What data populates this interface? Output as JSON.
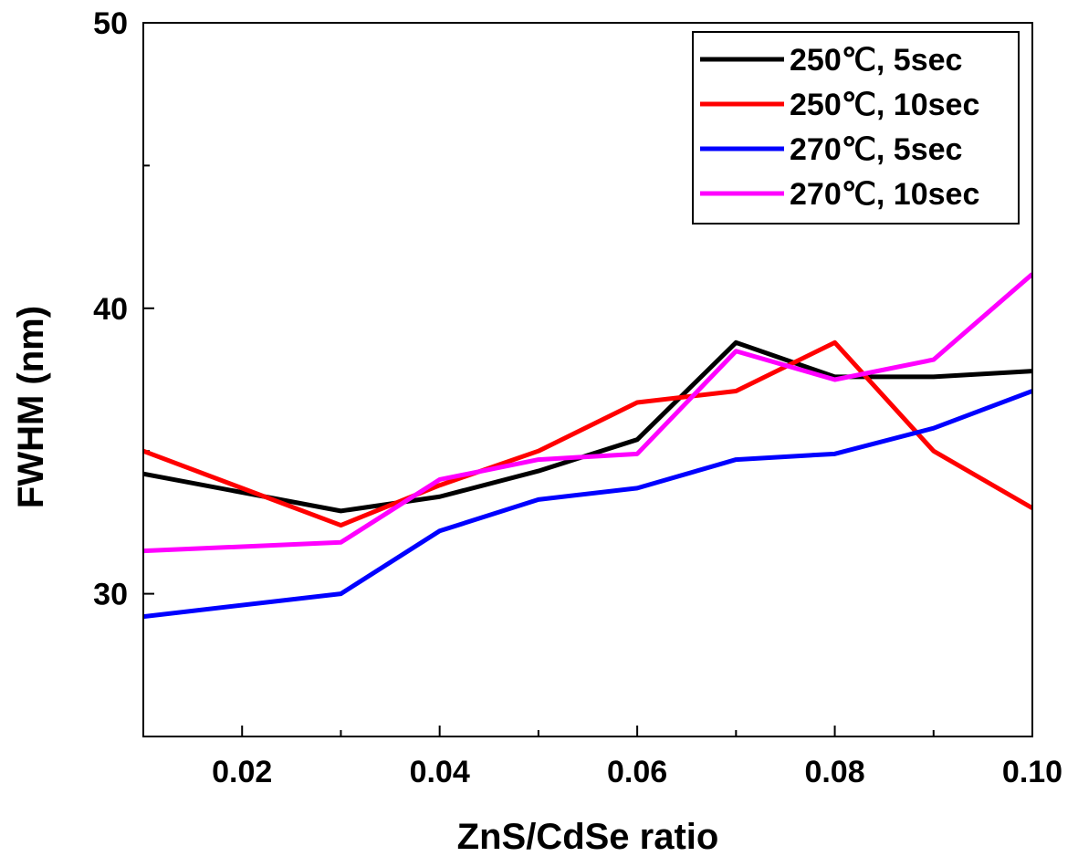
{
  "chart_data": {
    "type": "line",
    "xlabel": "ZnS/CdSe ratio",
    "ylabel": "FWHM (nm)",
    "xlim": [
      0.01,
      0.1
    ],
    "ylim": [
      25,
      50
    ],
    "x_ticks": [
      "0.02",
      "0.04",
      "0.06",
      "0.08",
      "0.10"
    ],
    "x_tick_values": [
      0.02,
      0.04,
      0.06,
      0.08,
      0.1
    ],
    "y_ticks": [
      "30",
      "40",
      "50"
    ],
    "y_tick_values": [
      30,
      40,
      50
    ],
    "legend_position": "top-right",
    "grid": false,
    "x": [
      0.01,
      0.03,
      0.04,
      0.05,
      0.06,
      0.07,
      0.08,
      0.09,
      0.1
    ],
    "series": [
      {
        "name": "250℃, 5sec",
        "color": "#000000",
        "values": [
          34.2,
          32.9,
          33.4,
          34.3,
          35.4,
          38.8,
          37.6,
          37.6,
          37.8
        ]
      },
      {
        "name": "250℃, 10sec",
        "color": "#ff0000",
        "values": [
          35.0,
          32.4,
          33.8,
          35.0,
          36.7,
          37.1,
          38.8,
          35.0,
          33.0
        ]
      },
      {
        "name": "270℃, 5sec",
        "color": "#0000ff",
        "values": [
          29.2,
          30.0,
          32.2,
          33.3,
          33.7,
          34.7,
          34.9,
          35.8,
          37.1
        ]
      },
      {
        "name": "270℃, 10sec",
        "color": "#ff00ff",
        "values": [
          31.5,
          31.8,
          34.0,
          34.7,
          34.9,
          38.5,
          37.5,
          38.2,
          41.2
        ]
      }
    ]
  }
}
